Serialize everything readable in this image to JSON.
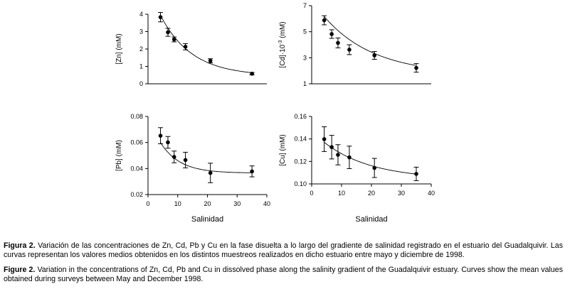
{
  "chart_data": [
    {
      "type": "scatter",
      "id": "zn",
      "ylabel": "[Zn] (mM)",
      "xlabel": "",
      "xlim": [
        0,
        40
      ],
      "ylim": [
        0,
        4
      ],
      "yticks": [
        "0",
        "1",
        "2",
        "3",
        "4"
      ],
      "xticks": [],
      "x": [
        4.2,
        6.7,
        8.8,
        12.6,
        21.0,
        35.0
      ],
      "y": [
        3.83,
        2.96,
        2.55,
        2.13,
        1.32,
        0.58
      ],
      "err": [
        0.27,
        0.23,
        0.14,
        0.18,
        0.12,
        0.07
      ],
      "fit": {
        "a": 0.45,
        "b": 5.2,
        "k": 0.095
      }
    },
    {
      "type": "scatter",
      "id": "cd",
      "ylabel": "[Cd]·10",
      "ylabel_sup": "-3",
      "ylabel_tail": " (mM)",
      "xlabel": "",
      "xlim": [
        0,
        40
      ],
      "ylim": [
        1,
        7
      ],
      "yticks": [
        "1",
        "3",
        "5",
        "7"
      ],
      "xticks": [],
      "x": [
        4.2,
        6.7,
        8.8,
        12.6,
        21.0,
        35.0
      ],
      "y": [
        5.88,
        4.82,
        4.14,
        3.62,
        3.18,
        2.22
      ],
      "err": [
        0.35,
        0.33,
        0.38,
        0.38,
        0.3,
        0.33
      ],
      "fit": {
        "a": 1.7,
        "b": 5.75,
        "k": 0.06
      }
    },
    {
      "type": "scatter",
      "id": "pb",
      "ylabel": "[Pb] (mM)",
      "xlabel": "Salinidad",
      "xlim": [
        0,
        40
      ],
      "ylim": [
        0.02,
        0.08
      ],
      "yticks": [
        "0.02",
        "0.04",
        "0.06",
        "0.08"
      ],
      "xticks": [
        "0",
        "10",
        "20",
        "30",
        "40"
      ],
      "x": [
        4.2,
        6.7,
        8.8,
        12.6,
        21.0,
        35.0
      ],
      "y": [
        0.0652,
        0.0601,
        0.0489,
        0.0465,
        0.0366,
        0.0378
      ],
      "err": [
        0.0062,
        0.0045,
        0.0045,
        0.006,
        0.0075,
        0.0042
      ],
      "fit": {
        "a": 0.0365,
        "b": 0.045,
        "k": 0.155
      }
    },
    {
      "type": "scatter",
      "id": "cu",
      "ylabel": "[Cu] (mM)",
      "xlabel": "Salinidad",
      "xlim": [
        0,
        40
      ],
      "ylim": [
        0.1,
        0.16
      ],
      "yticks": [
        "0.10",
        "0.12",
        "0.14",
        "0.16"
      ],
      "xticks": [
        "0",
        "10",
        "20",
        "30",
        "40"
      ],
      "x": [
        4.2,
        6.7,
        8.8,
        12.6,
        21.0,
        35.0
      ],
      "y": [
        0.1398,
        0.1327,
        0.1259,
        0.1236,
        0.1142,
        0.1089
      ],
      "err": [
        0.011,
        0.0105,
        0.009,
        0.01,
        0.0085,
        0.006
      ],
      "fit": {
        "a": 0.104,
        "b": 0.043,
        "k": 0.063
      }
    }
  ],
  "caption_es": {
    "label": "Figura 2.",
    "text": " Variación de las concentraciones de Zn, Cd, Pb y Cu en la fase disuelta a lo largo del gradiente de salinidad registrado en el estuario del Guadalquivir. Las curvas representan los valores medios obtenidos en los distintos muestreos realizados en dicho estuario entre mayo y diciembre de 1998."
  },
  "caption_en": {
    "label": "Figure 2.",
    "text": " Variation in the concentrations of Zn, Cd, Pb and Cu in dissolved phase along the salinity gradient of the Guadalquivir estuary. Curves show the mean values obtained during surveys between May and December 1998."
  }
}
